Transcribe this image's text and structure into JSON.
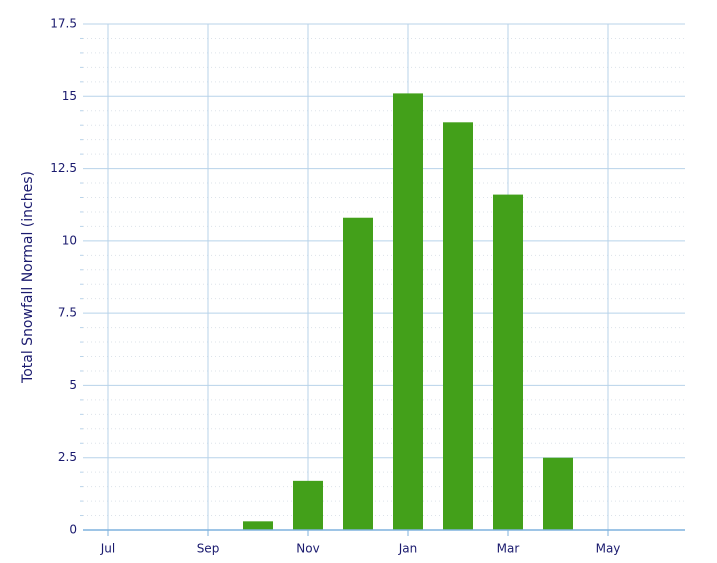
{
  "chart_data": {
    "type": "bar",
    "y_label": "Total Snowfall Normal (inches)",
    "categories": [
      "Jul",
      null,
      "Sep",
      null,
      "Nov",
      null,
      "Jan",
      null,
      "Mar",
      null,
      "May",
      null
    ],
    "values": [
      0,
      0,
      0,
      0.3,
      1.7,
      10.8,
      15.1,
      14.1,
      11.6,
      2.5,
      0,
      0
    ],
    "color": "#43a01a",
    "ylim": [
      0,
      17.5
    ],
    "yticks": [
      0,
      2.5,
      5,
      7.5,
      10,
      12.5,
      15,
      17.5
    ],
    "grid": true
  }
}
